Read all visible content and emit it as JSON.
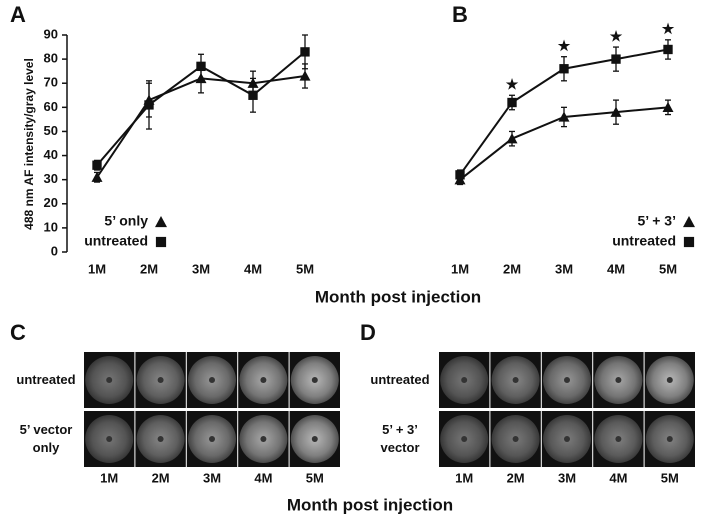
{
  "chart_data": [
    {
      "panel": "A",
      "type": "line",
      "ylabel": "488 nm AF intensity/gray level",
      "categories": [
        "1M",
        "2M",
        "3M",
        "4M",
        "5M"
      ],
      "ylim": [
        0,
        90
      ],
      "yticks": [
        0,
        10,
        20,
        30,
        40,
        50,
        60,
        70,
        80,
        90
      ],
      "y_axis": true,
      "legend": "lower left",
      "series": [
        {
          "name": "5’ only",
          "marker": "triangle",
          "color": "#111111",
          "values": [
            31,
            63,
            72,
            70,
            73
          ],
          "errors": [
            2,
            7,
            6,
            5,
            5
          ]
        },
        {
          "name": "untreated",
          "marker": "square",
          "color": "#111111",
          "values": [
            36,
            61,
            77,
            65,
            83
          ],
          "errors": [
            2,
            10,
            5,
            7,
            7
          ]
        }
      ]
    },
    {
      "panel": "B",
      "type": "line",
      "categories": [
        "1M",
        "2M",
        "3M",
        "4M",
        "5M"
      ],
      "ylim": [
        0,
        90
      ],
      "y_axis": false,
      "legend": "lower right",
      "significance": [
        null,
        "★",
        "★",
        "★",
        "★"
      ],
      "series": [
        {
          "name": "5’ + 3’",
          "marker": "triangle",
          "color": "#111111",
          "values": [
            30,
            47,
            56,
            58,
            60
          ],
          "errors": [
            2,
            3,
            4,
            5,
            3
          ]
        },
        {
          "name": "untreated",
          "marker": "square",
          "color": "#111111",
          "values": [
            32,
            62,
            76,
            80,
            84
          ],
          "errors": [
            2,
            3,
            5,
            5,
            4
          ]
        }
      ]
    }
  ],
  "x_label": "Month post injection",
  "image_panels": [
    {
      "panel": "C",
      "rows": [
        "untreated",
        "5’ vector only"
      ],
      "columns": [
        "1M",
        "2M",
        "3M",
        "4M",
        "5M"
      ]
    },
    {
      "panel": "D",
      "rows": [
        "untreated",
        "5’ + 3’ vector"
      ],
      "columns": [
        "1M",
        "2M",
        "3M",
        "4M",
        "5M"
      ]
    }
  ],
  "image_x_label": "Month post injection"
}
